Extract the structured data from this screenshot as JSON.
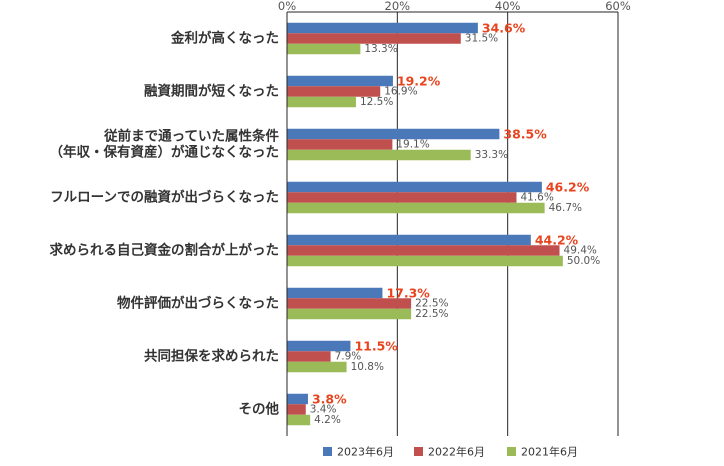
{
  "chart_data": {
    "type": "bar",
    "orientation": "horizontal",
    "categories": [
      [
        "金利が高くなった"
      ],
      [
        "融資期間が短くなった"
      ],
      [
        "従前まで通っていた属性条件",
        "（年収・保有資産）が通じなくなった"
      ],
      [
        "フルローンでの融資が出づらくなった"
      ],
      [
        "求められる自己資金の割合が上がった"
      ],
      [
        "物件評価が出づらくなった"
      ],
      [
        "共同担保を求められた"
      ],
      [
        "その他"
      ]
    ],
    "series": [
      {
        "name": "2023年6月",
        "color": "#4a78b8",
        "values": [
          34.6,
          19.2,
          38.5,
          46.2,
          44.2,
          17.3,
          11.5,
          3.8
        ],
        "labels": [
          "34.6%",
          "19.2%",
          "38.5%",
          "46.2%",
          "44.2%",
          "17.3%",
          "11.5%",
          "3.8%"
        ],
        "highlight": true
      },
      {
        "name": "2022年6月",
        "color": "#c0504d",
        "values": [
          31.5,
          16.9,
          19.1,
          41.6,
          49.4,
          22.5,
          7.9,
          3.4
        ],
        "labels": [
          "31.5%",
          "16.9%",
          "19.1%",
          "41.6%",
          "49.4%",
          "22.5%",
          "7.9%",
          "3.4%"
        ],
        "highlight": false
      },
      {
        "name": "2021年6月",
        "color": "#9bbb59",
        "values": [
          13.3,
          12.5,
          33.3,
          46.7,
          50.0,
          22.5,
          10.8,
          4.2
        ],
        "labels": [
          "13.3%",
          "12.5%",
          "33.3%",
          "46.7%",
          "50.0%",
          "22.5%",
          "10.8%",
          "4.2%"
        ],
        "highlight": false
      }
    ],
    "xticks": [
      "0%",
      "20%",
      "40%",
      "60%"
    ],
    "xlim": [
      0,
      60
    ],
    "highlight_color": "#e8451f",
    "grid": true,
    "legend_position": "bottom"
  }
}
